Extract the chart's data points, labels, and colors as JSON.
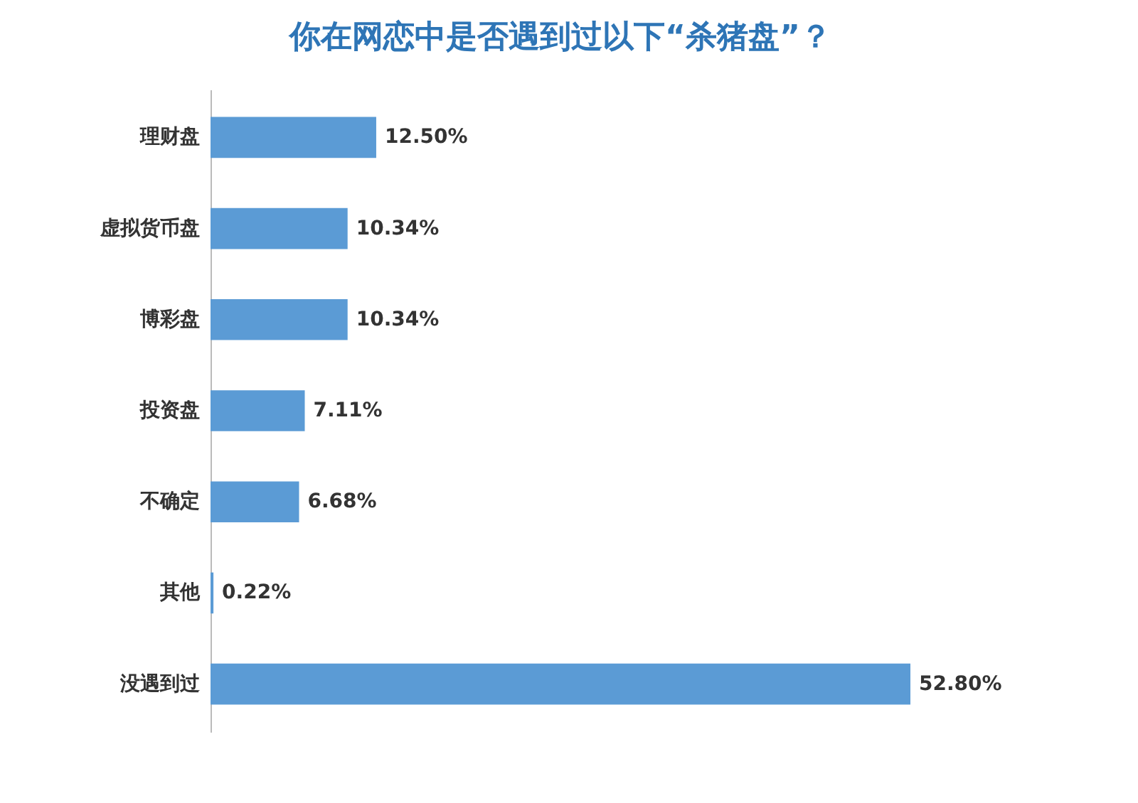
{
  "chart_data": {
    "type": "bar",
    "orientation": "horizontal",
    "title": "你在网恋中是否遇到过以下“杀猪盘”？",
    "categories": [
      "理财盘",
      "虚拟货币盘",
      "博彩盘",
      "投资盘",
      "不确定",
      "其他",
      "没遇到过"
    ],
    "values": [
      12.5,
      10.34,
      10.34,
      7.11,
      6.68,
      0.22,
      52.8
    ],
    "value_labels": [
      "12.50%",
      "10.34%",
      "10.34%",
      "7.11%",
      "6.68%",
      "0.22%",
      "52.80%"
    ],
    "color": "#5b9bd5",
    "grid": false
  }
}
